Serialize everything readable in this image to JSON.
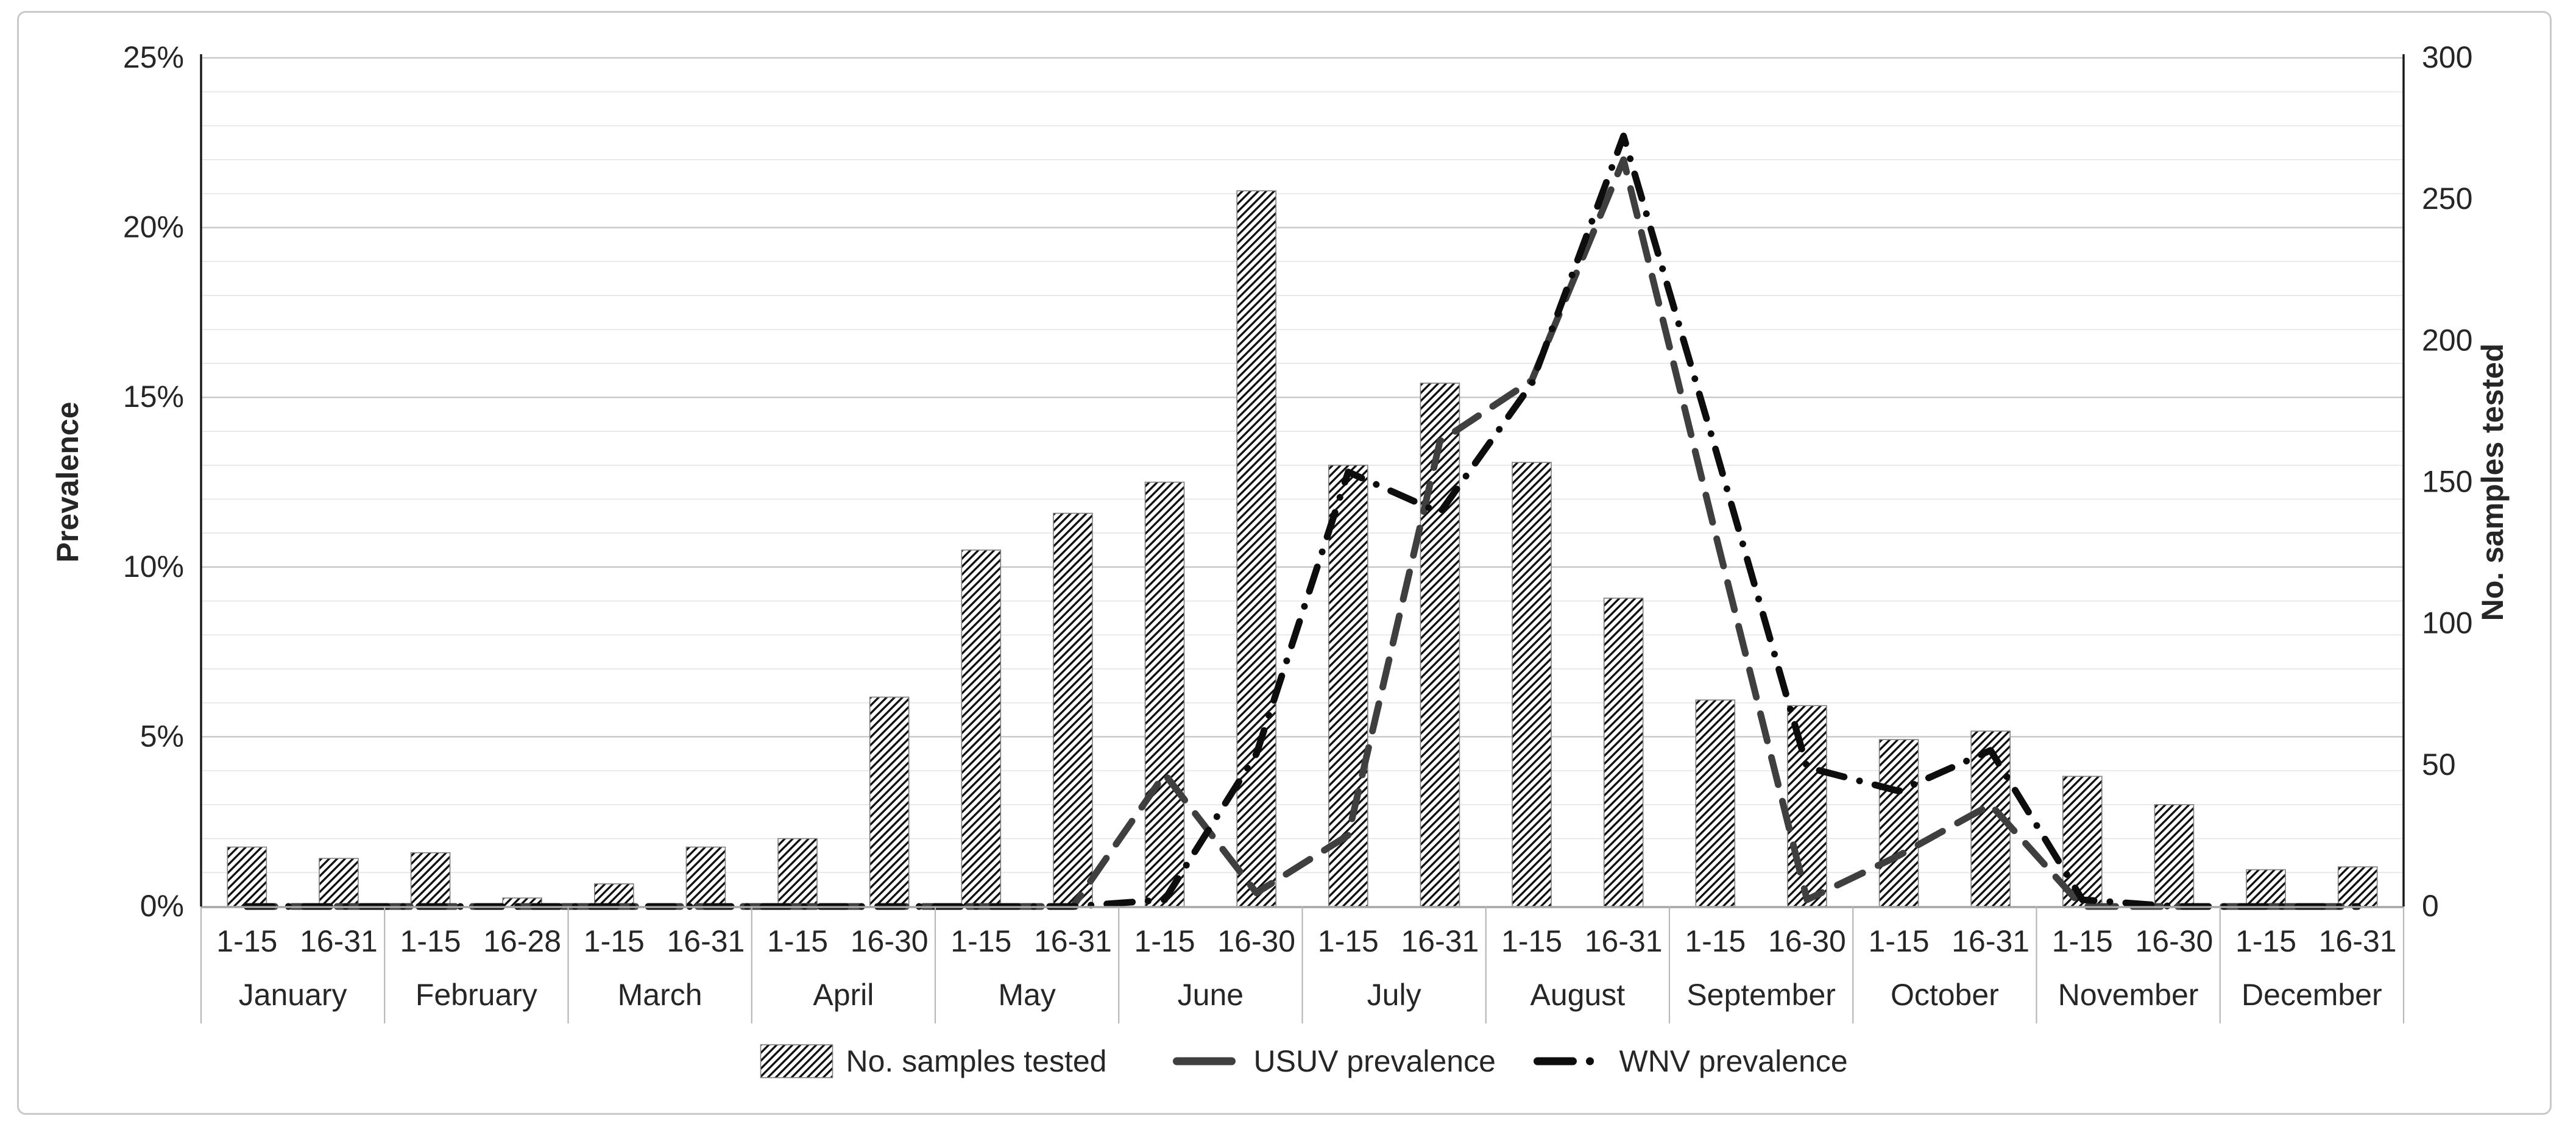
{
  "chart_data": {
    "type": "combo",
    "title": "",
    "months": [
      {
        "label": "January",
        "periods": [
          "1-15",
          "16-31"
        ]
      },
      {
        "label": "February",
        "periods": [
          "1-15",
          "16-28"
        ]
      },
      {
        "label": "March",
        "periods": [
          "1-15",
          "16-31"
        ]
      },
      {
        "label": "April",
        "periods": [
          "1-15",
          "16-30"
        ]
      },
      {
        "label": "May",
        "periods": [
          "1-15",
          "16-31"
        ]
      },
      {
        "label": "June",
        "periods": [
          "1-15",
          "16-30"
        ]
      },
      {
        "label": "July",
        "periods": [
          "1-15",
          "16-31"
        ]
      },
      {
        "label": "August",
        "periods": [
          "1-15",
          "16-31"
        ]
      },
      {
        "label": "September",
        "periods": [
          "1-15",
          "16-30"
        ]
      },
      {
        "label": "October",
        "periods": [
          "1-15",
          "16-31"
        ]
      },
      {
        "label": "November",
        "periods": [
          "1-15",
          "16-30"
        ]
      },
      {
        "label": "December",
        "periods": [
          "1-15",
          "16-31"
        ]
      }
    ],
    "series": [
      {
        "name": "No. samples tested",
        "kind": "bar",
        "axis": "right",
        "fill": "hatch",
        "values": [
          21,
          17,
          19,
          3,
          8,
          21,
          24,
          74,
          126,
          139,
          150,
          253,
          156,
          185,
          157,
          109,
          73,
          71,
          59,
          62,
          46,
          36,
          13,
          14
        ]
      },
      {
        "name": "USUV prevalence",
        "kind": "line",
        "axis": "left",
        "style": "dash",
        "color": "#3f3f3f",
        "values": [
          0,
          0,
          0,
          0,
          0,
          0,
          0,
          0,
          0,
          0,
          3.9,
          0.4,
          2.1,
          13.7,
          15.5,
          22.0,
          11.0,
          0.2,
          1.5,
          3.0,
          0,
          0,
          0,
          0
        ]
      },
      {
        "name": "WNV prevalence",
        "kind": "line",
        "axis": "left",
        "style": "dash-dot",
        "color": "#0d0d0d",
        "values": [
          0,
          0,
          0,
          0,
          0,
          0,
          0,
          0,
          0,
          0,
          0.2,
          4.5,
          12.8,
          11.6,
          15.4,
          22.7,
          13.5,
          4.1,
          3.4,
          4.6,
          0.2,
          0,
          0,
          0
        ]
      }
    ],
    "left_axis": {
      "title": "Prevalence",
      "min": 0,
      "max": 25,
      "tick_labels": [
        "0%",
        "5%",
        "10%",
        "15%",
        "20%",
        "25%"
      ]
    },
    "right_axis": {
      "title": "No. samples tested",
      "min": 0,
      "max": 300,
      "tick_labels": [
        "0",
        "50",
        "100",
        "150",
        "200",
        "250",
        "300"
      ]
    },
    "gridlines": {
      "minor_step_pct": 1,
      "major_step_pct": 5,
      "minor_color": "#e4e4e4",
      "major_color": "#c9c9c9"
    },
    "legend": {
      "position": "bottom",
      "entries": [
        "No. samples tested",
        "USUV prevalence",
        "WNV prevalence"
      ]
    }
  },
  "colors": {
    "text": "#262626",
    "axis_dark": "#1a1a1a",
    "axis_bottom": "#a6a6a6",
    "separator": "#b7b7b7",
    "bar_hatch": "#111111",
    "bar_border": "#7f7f7f",
    "frame_border": "#c9c9c9",
    "background": "#ffffff"
  }
}
